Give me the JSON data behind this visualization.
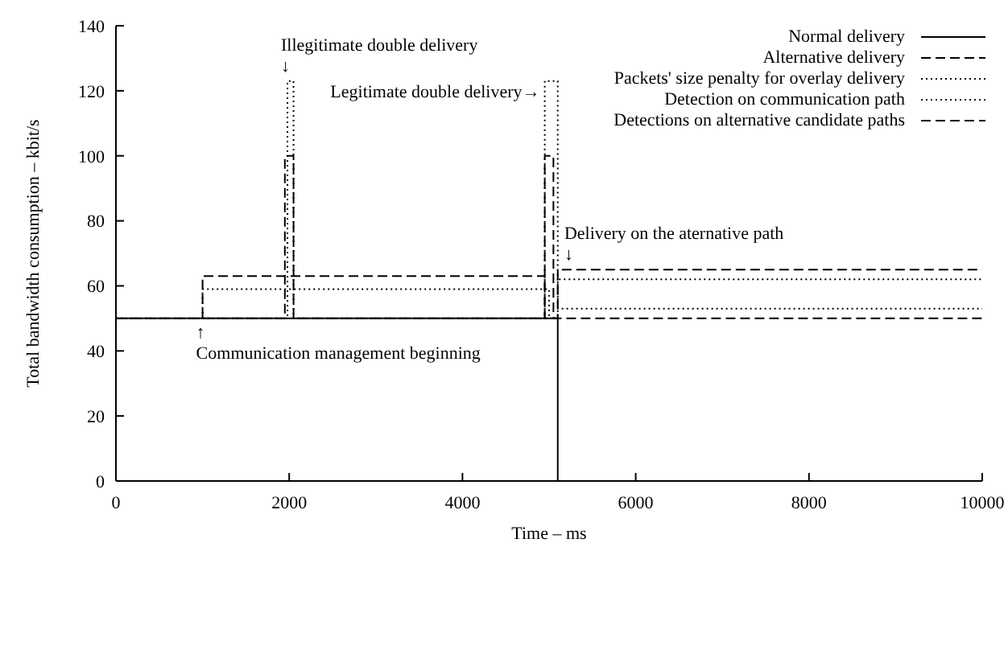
{
  "chart_data": {
    "type": "line",
    "xlabel": "Time – ms",
    "ylabel": "Total bandwidth consumption – kbit/s",
    "xlim": [
      0,
      10000
    ],
    "ylim": [
      0,
      140
    ],
    "xticks": [
      0,
      2000,
      4000,
      6000,
      8000,
      10000
    ],
    "yticks": [
      0,
      20,
      40,
      60,
      80,
      100,
      120,
      140
    ],
    "grid": false,
    "legend": "top right",
    "marker": "none",
    "series": [
      {
        "name": "Normal delivery",
        "color": "#000000",
        "line_style": "solid",
        "x": [
          0,
          0,
          5100,
          5100,
          10000
        ],
        "values": [
          0,
          50,
          50,
          0,
          0
        ]
      },
      {
        "name": "Alternative delivery",
        "color": "#000000",
        "line_style": "dashed",
        "x": [
          0,
          1950,
          1950,
          2050,
          2050,
          4950,
          4950,
          5050,
          5050,
          10000
        ],
        "values": [
          50,
          50,
          100,
          100,
          50,
          50,
          100,
          100,
          50,
          50
        ]
      },
      {
        "name": "Packets' size penalty for overlay delivery",
        "color": "#000000",
        "line_style": "dotted",
        "x": [
          0,
          1980,
          1980,
          2050,
          2050,
          4950,
          4950,
          5100,
          5100,
          10000
        ],
        "values": [
          50,
          50,
          123,
          123,
          50,
          50,
          123,
          123,
          53,
          53
        ]
      },
      {
        "name": "Detection on communication path",
        "color": "#000000",
        "line_style": "dotted",
        "x": [
          1000,
          1000,
          5000,
          5000,
          5100,
          5100,
          10000
        ],
        "values": [
          50,
          59,
          59,
          50,
          50,
          62,
          62
        ]
      },
      {
        "name": "Detections on alternative candidate paths",
        "color": "#000000",
        "line_style": "dashed",
        "x": [
          1000,
          1000,
          4950,
          4950,
          5100,
          5100,
          10000
        ],
        "values": [
          50,
          63,
          63,
          50,
          50,
          65,
          65
        ]
      }
    ],
    "annotations": [
      {
        "text": "Illegitimate double delivery\n↓",
        "x": 1980,
        "y": 123
      },
      {
        "text": "Legitimate double delivery→",
        "x": 4950,
        "y": 120
      },
      {
        "text": "Delivery on the aternative path\n↓",
        "x": 5250,
        "y": 65
      },
      {
        "text": "↑\nCommunication management beginning",
        "x": 1000,
        "y": 50
      }
    ]
  }
}
